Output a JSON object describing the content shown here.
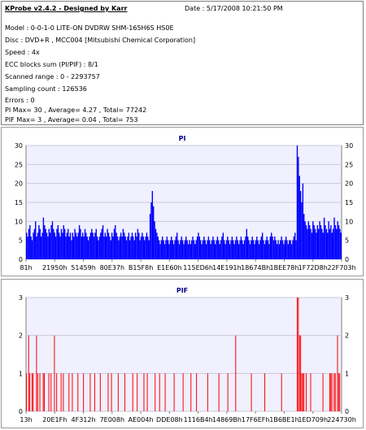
{
  "header": {
    "app_title": "KProbe v2.4.2 - Designed by Karr",
    "date": "Date : 5/17/2008 10:21:50 PM"
  },
  "info": {
    "model": "Model : 0-0-1-0 LITE-ON DVDRW SHM-165H6S HS0E",
    "disc": "Disc : DVD+R , MCC004 [Mitsubishi Chemical Corporation]",
    "speed": "Speed : 4x",
    "ecc": "ECC blocks sum (PI/PIF) : 8/1",
    "scanned": "Scanned range : 0 - 2293757",
    "sampling": "Sampling count : 126536",
    "errors": "Errors : 0",
    "pi_summary": "PI Max= 30 , Average= 4.27 , Total= 77242",
    "pif_summary": "PIF Max= 3 , Average= 0.04 , Total= 753"
  },
  "colors": {
    "bar": "#0000ff",
    "pif_bar": "#ff0000",
    "plot_bg": "#f0f0ff",
    "title": "#00008b"
  },
  "chart_data": [
    {
      "type": "bar",
      "title": "PI",
      "ylim": [
        0,
        30
      ],
      "yticks": [
        0,
        5,
        10,
        15,
        20,
        25,
        30
      ],
      "xticks": [
        "81h",
        "21950h",
        "51459h",
        "80E37h",
        "B15F8h",
        "E1E60h",
        "115ED6h",
        "14E191h",
        "18674Bh",
        "1BEE78h",
        "1F72D8h",
        "22F703h"
      ],
      "grid": true,
      "series": [
        {
          "values": [
            7,
            6,
            8,
            9,
            6,
            5,
            7,
            8,
            10,
            6,
            7,
            9,
            8,
            6,
            7,
            11,
            9,
            8,
            7,
            6,
            8,
            7,
            9,
            10,
            8,
            7,
            6,
            8,
            9,
            7,
            6,
            8,
            7,
            9,
            8,
            6,
            7,
            8,
            6,
            7,
            5,
            7,
            6,
            8,
            7,
            6,
            7,
            9,
            8,
            6,
            7,
            6,
            8,
            7,
            6,
            5,
            6,
            7,
            8,
            7,
            6,
            7,
            8,
            6,
            5,
            6,
            7,
            8,
            9,
            6,
            7,
            6,
            8,
            7,
            6,
            5,
            7,
            6,
            8,
            9,
            7,
            6,
            5,
            6,
            7,
            6,
            8,
            7,
            6,
            5,
            6,
            7,
            5,
            6,
            7,
            6,
            5,
            7,
            6,
            8,
            7,
            5,
            6,
            7,
            6,
            5,
            6,
            7,
            6,
            5,
            12,
            15,
            18,
            14,
            10,
            8,
            7,
            6,
            5,
            4,
            5,
            6,
            5,
            4,
            5,
            6,
            5,
            4,
            5,
            6,
            5,
            4,
            5,
            6,
            7,
            5,
            4,
            5,
            6,
            5,
            4,
            5,
            6,
            5,
            4,
            5,
            4,
            5,
            6,
            5,
            4,
            5,
            6,
            7,
            6,
            5,
            4,
            5,
            6,
            5,
            4,
            5,
            6,
            5,
            4,
            5,
            6,
            5,
            4,
            5,
            6,
            5,
            4,
            5,
            6,
            7,
            5,
            4,
            5,
            6,
            5,
            4,
            5,
            6,
            5,
            4,
            5,
            6,
            5,
            4,
            5,
            6,
            5,
            4,
            5,
            6,
            8,
            6,
            5,
            4,
            5,
            6,
            5,
            4,
            5,
            6,
            5,
            4,
            5,
            6,
            7,
            5,
            4,
            5,
            6,
            5,
            4,
            6,
            7,
            6,
            5,
            6,
            5,
            4,
            5,
            4,
            5,
            6,
            5,
            4,
            5,
            6,
            5,
            4,
            5,
            5,
            4,
            5,
            6,
            7,
            5,
            30,
            27,
            22,
            18,
            15,
            20,
            12,
            10,
            9,
            8,
            10,
            9,
            8,
            7,
            10,
            9,
            8,
            7,
            9,
            8,
            10,
            9,
            8,
            7,
            11,
            9,
            8,
            7,
            10,
            8,
            9,
            7,
            8,
            11,
            9,
            8,
            10,
            9,
            8,
            7
          ]
        }
      ]
    },
    {
      "type": "bar",
      "title": "PIF",
      "ylim": [
        0,
        3
      ],
      "yticks": [
        0,
        1,
        2,
        3
      ],
      "xticks": [
        "13h",
        "20E1Fh",
        "4F312h",
        "7E008h",
        "AE004h",
        "DDE08h",
        "1116B4h",
        "14869Bh",
        "17F6EFh",
        "1B6BE1h",
        "1ED709h",
        "224730h"
      ],
      "grid": true,
      "series": [
        {
          "values": [
            1,
            0,
            2,
            1,
            0,
            1,
            1,
            0,
            0,
            2,
            1,
            0,
            1,
            0,
            0,
            1,
            1,
            0,
            0,
            0,
            1,
            0,
            1,
            0,
            0,
            2,
            0,
            1,
            0,
            0,
            0,
            1,
            0,
            1,
            0,
            0,
            0,
            0,
            1,
            0,
            0,
            1,
            0,
            0,
            0,
            0,
            1,
            0,
            0,
            0,
            0,
            1,
            0,
            0,
            0,
            0,
            0,
            1,
            0,
            0,
            0,
            1,
            0,
            0,
            0,
            0,
            1,
            0,
            0,
            0,
            0,
            0,
            0,
            1,
            0,
            0,
            1,
            0,
            0,
            0,
            0,
            0,
            1,
            0,
            0,
            0,
            0,
            0,
            1,
            0,
            0,
            0,
            0,
            0,
            0,
            1,
            0,
            0,
            0,
            1,
            0,
            0,
            0,
            0,
            0,
            1,
            0,
            0,
            1,
            0,
            0,
            0,
            0,
            0,
            0,
            1,
            0,
            0,
            0,
            1,
            0,
            0,
            0,
            0,
            1,
            0,
            0,
            0,
            0,
            0,
            0,
            0,
            1,
            0,
            0,
            0,
            0,
            0,
            0,
            0,
            1,
            0,
            0,
            0,
            0,
            0,
            0,
            1,
            0,
            0,
            0,
            0,
            1,
            0,
            0,
            0,
            0,
            0,
            0,
            0,
            0,
            0,
            1,
            0,
            0,
            0,
            0,
            0,
            0,
            0,
            0,
            0,
            1,
            0,
            0,
            0,
            0,
            0,
            0,
            0,
            1,
            0,
            0,
            0,
            0,
            0,
            0,
            2,
            0,
            0,
            0,
            0,
            0,
            0,
            0,
            0,
            0,
            0,
            0,
            0,
            0,
            1,
            0,
            0,
            0,
            0,
            0,
            0,
            0,
            0,
            0,
            0,
            0,
            1,
            0,
            0,
            0,
            0,
            0,
            0,
            0,
            0,
            0,
            0,
            0,
            0,
            0,
            0,
            1,
            0,
            0,
            0,
            0,
            0,
            0,
            0,
            0,
            0,
            0,
            0,
            0,
            0,
            3,
            3,
            2,
            2,
            1,
            1,
            1,
            0,
            1,
            0,
            0,
            0,
            1,
            0,
            0,
            0,
            0,
            0,
            0,
            0,
            0,
            0,
            0,
            1,
            0,
            0,
            0,
            0,
            0,
            1,
            1,
            1,
            0,
            1,
            1,
            0,
            2,
            1,
            1,
            0
          ]
        }
      ]
    }
  ]
}
